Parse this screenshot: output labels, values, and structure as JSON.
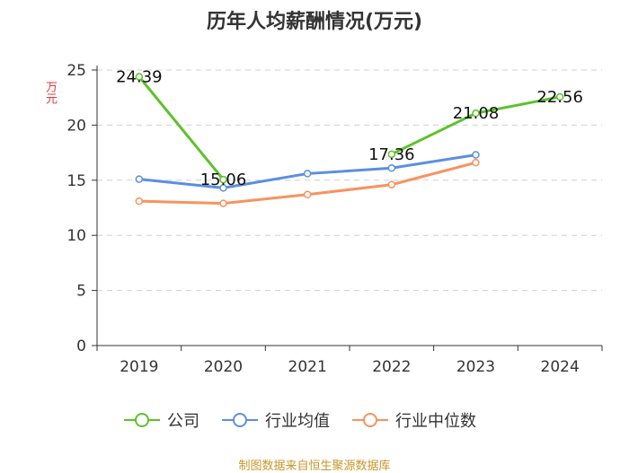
{
  "title": "历年人均薪酬情况(万元)",
  "source": "制图数据来自恒生聚源数据库",
  "chart_data": {
    "type": "line",
    "title": "历年人均薪酬情况(万元)",
    "ylabel": "万元",
    "xlabel": "",
    "categories": [
      "2019",
      "2020",
      "2021",
      "2022",
      "2023",
      "2024"
    ],
    "ylim": [
      0,
      25
    ],
    "yticks": [
      0,
      5,
      10,
      15,
      20,
      25
    ],
    "grid": "horizontal dashed",
    "legend_position": "bottom",
    "series": [
      {
        "name": "公司",
        "color": "#5cc22a",
        "values": [
          24.39,
          15.06,
          null,
          17.36,
          21.08,
          22.56
        ],
        "labels": [
          "24.39",
          "15.06",
          null,
          "17.36",
          "21.08",
          "22.56"
        ]
      },
      {
        "name": "行业均值",
        "color": "#5b8fe0",
        "values": [
          15.1,
          14.3,
          15.6,
          16.1,
          17.3,
          null
        ]
      },
      {
        "name": "行业中位数",
        "color": "#f7935e",
        "values": [
          13.1,
          12.9,
          13.7,
          14.6,
          16.6,
          null
        ]
      }
    ]
  }
}
